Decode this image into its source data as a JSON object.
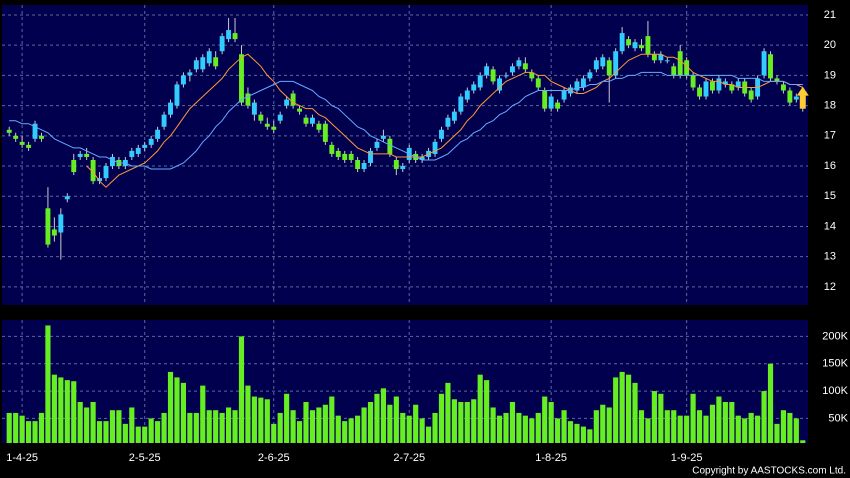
{
  "chart_data": {
    "type": "candlestick",
    "categories": [
      null,
      null,
      "1-4-25",
      null,
      null,
      null,
      null,
      null,
      null,
      null,
      null,
      null,
      null,
      null,
      null,
      null,
      null,
      null,
      null,
      null,
      null,
      "2-5-25",
      null,
      null,
      null,
      null,
      null,
      null,
      null,
      null,
      null,
      null,
      null,
      null,
      null,
      null,
      null,
      null,
      null,
      null,
      null,
      "2-6-25",
      null,
      null,
      null,
      null,
      null,
      null,
      null,
      null,
      null,
      null,
      null,
      null,
      null,
      null,
      null,
      null,
      null,
      null,
      null,
      null,
      "2-7-25",
      null,
      null,
      null,
      null,
      null,
      null,
      null,
      null,
      null,
      null,
      null,
      null,
      null,
      null,
      null,
      null,
      null,
      null,
      null,
      null,
      null,
      "1-8-25",
      null,
      null,
      null,
      null,
      null,
      null,
      null,
      null,
      null,
      null,
      null,
      null,
      null,
      null,
      null,
      null,
      null,
      null,
      null,
      null,
      "1-9-25",
      null,
      null,
      null,
      null,
      null,
      null,
      null,
      null,
      null,
      null,
      null,
      null,
      null,
      null,
      null,
      null,
      null,
      null
    ],
    "ohlc": [
      [
        17.2,
        17.3,
        17.0,
        17.1
      ],
      [
        17.0,
        17.1,
        16.8,
        16.9
      ],
      [
        16.8,
        17.0,
        16.6,
        16.7
      ],
      [
        16.7,
        16.8,
        16.5,
        16.6
      ],
      [
        16.9,
        17.5,
        16.8,
        17.4
      ],
      [
        17.0,
        17.1,
        16.8,
        16.9
      ],
      [
        14.6,
        15.3,
        13.3,
        13.4
      ],
      [
        13.9,
        14.3,
        13.5,
        13.7
      ],
      [
        13.8,
        14.6,
        12.9,
        14.4
      ],
      [
        14.9,
        15.1,
        14.8,
        15.0
      ],
      [
        16.2,
        16.4,
        15.7,
        15.8
      ],
      [
        16.3,
        16.5,
        16.2,
        16.4
      ],
      [
        16.4,
        16.6,
        16.2,
        16.3
      ],
      [
        16.2,
        16.3,
        15.4,
        15.5
      ],
      [
        15.5,
        15.8,
        15.4,
        15.6
      ],
      [
        15.6,
        16.1,
        15.5,
        16.0
      ],
      [
        16.0,
        16.4,
        15.9,
        16.3
      ],
      [
        16.2,
        16.3,
        15.9,
        16.0
      ],
      [
        16.0,
        16.3,
        15.9,
        16.2
      ],
      [
        16.3,
        16.6,
        16.2,
        16.5
      ],
      [
        16.4,
        16.7,
        16.3,
        16.6
      ],
      [
        16.6,
        16.8,
        16.5,
        16.7
      ],
      [
        16.7,
        17.0,
        16.6,
        16.9
      ],
      [
        16.9,
        17.3,
        16.8,
        17.2
      ],
      [
        17.3,
        17.8,
        17.2,
        17.7
      ],
      [
        17.7,
        18.2,
        17.6,
        18.1
      ],
      [
        18.0,
        18.8,
        17.9,
        18.7
      ],
      [
        18.7,
        19.1,
        18.6,
        19.0
      ],
      [
        19.0,
        19.2,
        18.8,
        19.1
      ],
      [
        19.2,
        19.6,
        19.1,
        19.5
      ],
      [
        19.2,
        19.7,
        19.1,
        19.6
      ],
      [
        19.4,
        19.9,
        19.3,
        19.8
      ],
      [
        19.6,
        19.8,
        19.2,
        19.3
      ],
      [
        19.8,
        20.4,
        19.7,
        20.3
      ],
      [
        20.2,
        20.9,
        20.1,
        20.5
      ],
      [
        20.4,
        20.9,
        20.1,
        20.2
      ],
      [
        19.7,
        20.0,
        18.0,
        18.1
      ],
      [
        18.4,
        18.6,
        17.9,
        18.0
      ],
      [
        17.7,
        18.2,
        17.5,
        18.1
      ],
      [
        17.7,
        17.8,
        17.4,
        17.5
      ],
      [
        17.4,
        17.6,
        17.2,
        17.3
      ],
      [
        17.3,
        17.5,
        17.1,
        17.2
      ],
      [
        17.5,
        17.8,
        17.4,
        17.7
      ],
      [
        18.0,
        18.3,
        17.9,
        18.2
      ],
      [
        18.4,
        18.5,
        17.9,
        18.0
      ],
      [
        17.9,
        18.0,
        17.7,
        17.8
      ],
      [
        17.6,
        17.7,
        17.3,
        17.4
      ],
      [
        17.4,
        17.7,
        17.3,
        17.6
      ],
      [
        17.4,
        17.5,
        17.1,
        17.2
      ],
      [
        17.4,
        17.5,
        16.7,
        16.8
      ],
      [
        16.7,
        16.8,
        16.3,
        16.4
      ],
      [
        16.5,
        16.6,
        16.2,
        16.3
      ],
      [
        16.4,
        16.5,
        16.1,
        16.2
      ],
      [
        16.4,
        16.5,
        16.1,
        16.2
      ],
      [
        16.2,
        16.3,
        15.8,
        15.9
      ],
      [
        15.9,
        16.2,
        15.8,
        16.1
      ],
      [
        16.1,
        16.6,
        16.0,
        16.5
      ],
      [
        16.6,
        16.9,
        16.5,
        16.8
      ],
      [
        16.9,
        17.2,
        16.8,
        17.0
      ],
      [
        16.9,
        17.0,
        16.3,
        16.4
      ],
      [
        16.2,
        16.3,
        15.7,
        15.9
      ],
      [
        15.9,
        16.1,
        15.8,
        16.0
      ],
      [
        16.2,
        16.7,
        16.1,
        16.6
      ],
      [
        16.4,
        16.5,
        16.1,
        16.2
      ],
      [
        16.2,
        16.4,
        16.1,
        16.3
      ],
      [
        16.3,
        16.6,
        16.2,
        16.5
      ],
      [
        16.4,
        16.9,
        16.3,
        16.8
      ],
      [
        16.9,
        17.3,
        16.8,
        17.2
      ],
      [
        17.3,
        17.7,
        17.2,
        17.6
      ],
      [
        17.5,
        17.9,
        17.4,
        17.8
      ],
      [
        17.8,
        18.4,
        17.7,
        18.3
      ],
      [
        18.2,
        18.6,
        18.1,
        18.5
      ],
      [
        18.5,
        18.8,
        18.4,
        18.7
      ],
      [
        18.6,
        19.1,
        18.5,
        19.0
      ],
      [
        19.0,
        19.4,
        18.9,
        19.3
      ],
      [
        19.2,
        19.3,
        18.7,
        18.8
      ],
      [
        18.5,
        19.0,
        18.4,
        18.9
      ],
      [
        19.0,
        19.1,
        18.9,
        19.0
      ],
      [
        19.1,
        19.4,
        19.0,
        19.3
      ],
      [
        19.3,
        19.6,
        19.2,
        19.5
      ],
      [
        19.4,
        19.6,
        19.1,
        19.2
      ],
      [
        19.1,
        19.2,
        18.8,
        18.9
      ],
      [
        18.9,
        19.0,
        18.5,
        18.6
      ],
      [
        18.5,
        18.6,
        17.8,
        17.9
      ],
      [
        17.9,
        18.4,
        17.8,
        18.3
      ],
      [
        18.1,
        18.2,
        17.8,
        17.9
      ],
      [
        18.2,
        18.6,
        18.1,
        18.5
      ],
      [
        18.4,
        18.7,
        18.3,
        18.6
      ],
      [
        18.5,
        18.9,
        18.4,
        18.8
      ],
      [
        18.6,
        19.0,
        18.5,
        18.9
      ],
      [
        18.9,
        19.2,
        18.8,
        19.1
      ],
      [
        19.2,
        19.6,
        19.1,
        19.5
      ],
      [
        19.3,
        19.7,
        19.2,
        19.6
      ],
      [
        19.5,
        19.6,
        18.1,
        19.0
      ],
      [
        19.0,
        19.9,
        18.9,
        19.8
      ],
      [
        19.8,
        20.6,
        19.7,
        20.4
      ],
      [
        20.2,
        20.3,
        19.9,
        20.0
      ],
      [
        19.9,
        20.2,
        19.8,
        20.1
      ],
      [
        20.0,
        20.2,
        19.8,
        19.9
      ],
      [
        20.3,
        20.8,
        19.6,
        19.7
      ],
      [
        19.7,
        19.8,
        19.4,
        19.5
      ],
      [
        19.5,
        19.8,
        19.4,
        19.7
      ],
      [
        19.5,
        19.6,
        19.4,
        19.5
      ],
      [
        19.3,
        19.4,
        18.9,
        19.0
      ],
      [
        19.8,
        20.0,
        18.9,
        19.0
      ],
      [
        19.5,
        19.6,
        18.9,
        19.0
      ],
      [
        19.0,
        19.1,
        18.5,
        18.6
      ],
      [
        18.6,
        18.7,
        18.2,
        18.3
      ],
      [
        18.3,
        18.9,
        18.2,
        18.8
      ],
      [
        18.8,
        18.9,
        18.4,
        18.5
      ],
      [
        18.5,
        19.0,
        18.4,
        18.9
      ],
      [
        18.7,
        18.9,
        18.6,
        18.8
      ],
      [
        18.7,
        18.8,
        18.4,
        18.5
      ],
      [
        18.6,
        18.9,
        18.5,
        18.8
      ],
      [
        18.8,
        18.9,
        18.3,
        18.4
      ],
      [
        18.5,
        18.6,
        18.1,
        18.2
      ],
      [
        18.3,
        19.0,
        18.2,
        18.9
      ],
      [
        19.0,
        19.9,
        18.9,
        19.8
      ],
      [
        19.7,
        19.8,
        18.8,
        18.9
      ],
      [
        18.9,
        19.0,
        18.7,
        18.8
      ],
      [
        18.7,
        18.8,
        18.4,
        18.5
      ],
      [
        18.5,
        18.6,
        18.0,
        18.1
      ],
      [
        18.2,
        18.4,
        18.1,
        18.3
      ],
      [
        18.3,
        18.5,
        17.8,
        17.9
      ]
    ],
    "up_color": "#33ccff",
    "down_color": "#66ee22",
    "ylim": [
      11.4,
      21.33
    ],
    "yticks": [
      12,
      13,
      14,
      15,
      16,
      17,
      18,
      19,
      20,
      21
    ],
    "grid": true,
    "lines": [
      {
        "color": "#ff9933",
        "values": [
          null,
          null,
          null,
          null,
          null,
          null,
          null,
          null,
          null,
          null,
          null,
          null,
          16.0,
          15.8,
          15.5,
          15.3,
          15.5,
          15.7,
          15.8,
          15.9,
          16.0,
          16.1,
          16.3,
          16.5,
          16.8,
          17.0,
          17.3,
          17.6,
          17.9,
          18.1,
          18.3,
          18.5,
          18.7,
          18.9,
          19.2,
          19.4,
          19.6,
          19.7,
          19.5,
          19.3,
          19.0,
          18.8,
          18.5,
          18.3,
          18.1,
          18.0,
          17.9,
          17.9,
          17.7,
          17.6,
          17.4,
          17.2,
          17.0,
          16.8,
          16.6,
          16.5,
          16.4,
          16.4,
          16.4,
          16.4,
          16.3,
          16.3,
          16.3,
          16.3,
          16.3,
          16.4,
          16.5,
          16.6,
          16.8,
          17.0,
          17.2,
          17.5,
          17.7,
          18.0,
          18.2,
          18.4,
          18.6,
          18.8,
          18.9,
          19.0,
          19.1,
          19.1,
          19.0,
          19.0,
          18.8,
          18.7,
          18.6,
          18.5,
          18.4,
          18.4,
          18.5,
          18.6,
          18.8,
          18.9,
          19.1,
          19.3,
          19.5,
          19.6,
          19.7,
          19.7,
          19.7,
          19.7,
          19.6,
          19.6,
          19.5,
          19.3,
          19.1,
          19.0,
          18.9,
          18.8,
          18.8,
          18.7,
          18.7,
          18.6,
          18.6,
          18.6,
          18.6,
          18.7,
          18.8,
          18.8,
          18.8,
          18.7,
          18.7,
          18.6
        ]
      },
      {
        "color": "#66aaff",
        "values": [
          17.5,
          17.5,
          17.4,
          17.4,
          17.3,
          17.2,
          17.1,
          16.9,
          16.8,
          16.7,
          16.6,
          16.6,
          16.5,
          16.4,
          16.3,
          16.3,
          16.2,
          16.1,
          16.1,
          16.0,
          16.0,
          16.0,
          15.9,
          15.9,
          15.9,
          15.9,
          16.0,
          16.1,
          16.3,
          16.5,
          16.8,
          17.0,
          17.3,
          17.5,
          17.8,
          18.0,
          18.2,
          18.3,
          18.4,
          18.5,
          18.6,
          18.7,
          18.8,
          18.8,
          18.8,
          18.7,
          18.6,
          18.5,
          18.3,
          18.2,
          18.0,
          17.9,
          17.7,
          17.5,
          17.3,
          17.2,
          17.0,
          16.9,
          16.8,
          16.7,
          16.6,
          16.5,
          16.4,
          16.3,
          16.2,
          16.2,
          16.2,
          16.3,
          16.4,
          16.6,
          16.8,
          16.9,
          17.1,
          17.2,
          17.4,
          17.5,
          17.7,
          17.8,
          18.0,
          18.1,
          18.3,
          18.4,
          18.5,
          18.5,
          18.5,
          18.5,
          18.5,
          18.5,
          18.6,
          18.6,
          18.7,
          18.7,
          18.8,
          18.8,
          18.9,
          18.9,
          19.0,
          19.0,
          19.1,
          19.1,
          19.1,
          19.1,
          19.0,
          19.0,
          19.0,
          19.0,
          19.0,
          19.0,
          19.0,
          19.0,
          19.0,
          19.0,
          19.0,
          18.9,
          18.9,
          18.9,
          18.9,
          18.8,
          18.8,
          18.8,
          18.8,
          18.7,
          18.7,
          18.7
        ]
      }
    ],
    "volume": {
      "color": "#66ee22",
      "values": [
        60000,
        60000,
        55000,
        45000,
        45000,
        60000,
        220000,
        130000,
        125000,
        120000,
        118000,
        80000,
        70000,
        80000,
        45000,
        45000,
        65000,
        65000,
        40000,
        70000,
        35000,
        35000,
        50000,
        45000,
        60000,
        135000,
        125000,
        115000,
        60000,
        60000,
        110000,
        65000,
        65000,
        60000,
        70000,
        65000,
        200000,
        110000,
        90000,
        88000,
        85000,
        40000,
        60000,
        95000,
        65000,
        45000,
        80000,
        65000,
        70000,
        75000,
        90000,
        55000,
        45000,
        50000,
        55000,
        70000,
        80000,
        95000,
        105000,
        75000,
        90000,
        60000,
        55000,
        75000,
        50000,
        35000,
        60000,
        95000,
        115000,
        85000,
        80000,
        80000,
        85000,
        130000,
        120000,
        70000,
        55000,
        60000,
        80000,
        60000,
        55000,
        50000,
        60000,
        90000,
        80000,
        50000,
        65000,
        45000,
        40000,
        35000,
        30000,
        65000,
        75000,
        70000,
        125000,
        135000,
        130000,
        115000,
        65000,
        50000,
        100000,
        95000,
        65000,
        65000,
        55000,
        55000,
        95000,
        65000,
        55000,
        75000,
        90000,
        80000,
        80000,
        55000,
        50000,
        60000,
        55000,
        100000,
        150000,
        40000,
        65000,
        60000,
        50000,
        10000
      ],
      "ylim": [
        5000,
        230000
      ],
      "yticks": [
        {
          "value": 50000,
          "label": "50K"
        },
        {
          "value": 100000,
          "label": "100K"
        },
        {
          "value": 150000,
          "label": "150K"
        },
        {
          "value": 200000,
          "label": "200K"
        }
      ]
    },
    "copyright": "Copyright by AASTOCKS.com Ltd."
  }
}
